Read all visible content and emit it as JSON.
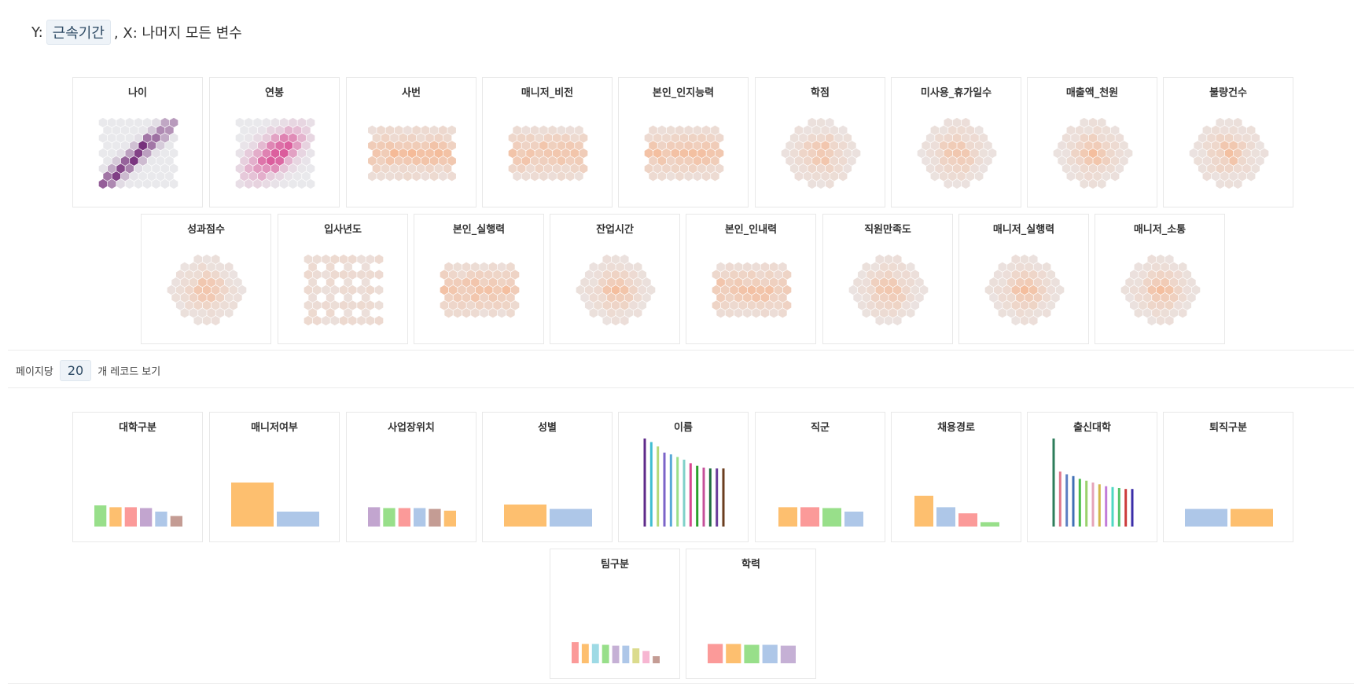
{
  "header": {
    "y_prefix": "Y:",
    "y_variable": "근속기간",
    "x_text": ", X: 나머지 모든 변수"
  },
  "pagination": {
    "prefix": "페이지당",
    "value": "20",
    "suffix": "개 레코드 보기"
  },
  "colors": {
    "heat_purple": "#6a1b6f",
    "heat_pink": "#d9458f",
    "heat_orange": "#f6b58e",
    "heat_bg": "#e9e9ec",
    "bar_palette": [
      "#99d98c",
      "#fdbf6f",
      "#fb9a99",
      "#c2a5cf",
      "#a6c8ec",
      "#c49c94",
      "#86d5e3",
      "#2ca02c",
      "#ff9896",
      "#98df8a",
      "#b5b5e0",
      "#8c564b"
    ]
  },
  "hexbin_charts": [
    {
      "id": "age",
      "title": "나이",
      "scheme": "purple"
    },
    {
      "id": "salary",
      "title": "연봉",
      "scheme": "pink"
    },
    {
      "id": "empno",
      "title": "사번",
      "scheme": "orange"
    },
    {
      "id": "mgr_vision",
      "title": "매니저_비전",
      "scheme": "orange"
    },
    {
      "id": "self_cog",
      "title": "본인_인지능력",
      "scheme": "orange"
    },
    {
      "id": "gpa",
      "title": "학점",
      "scheme": "orange"
    },
    {
      "id": "unused_leave",
      "title": "미사용_휴가일수",
      "scheme": "orange"
    },
    {
      "id": "sales",
      "title": "매출액_천원",
      "scheme": "orange"
    },
    {
      "id": "defects",
      "title": "불량건수",
      "scheme": "orange"
    },
    {
      "id": "perf",
      "title": "성과점수",
      "scheme": "orange"
    },
    {
      "id": "join_year",
      "title": "입사년도",
      "scheme": "orange"
    },
    {
      "id": "self_exec",
      "title": "본인_실행력",
      "scheme": "orange"
    },
    {
      "id": "overtime",
      "title": "잔업시간",
      "scheme": "orange"
    },
    {
      "id": "self_patience",
      "title": "본인_인내력",
      "scheme": "orange"
    },
    {
      "id": "satisfaction",
      "title": "직원만족도",
      "scheme": "orange"
    },
    {
      "id": "mgr_exec",
      "title": "매니저_실행력",
      "scheme": "orange"
    },
    {
      "id": "mgr_comm",
      "title": "매니저_소통",
      "scheme": "orange"
    }
  ],
  "chart_data": [
    {
      "type": "bar",
      "title": "대학구분",
      "values": [
        24,
        22,
        22,
        21,
        17,
        12
      ]
    },
    {
      "type": "bar",
      "title": "매니저여부",
      "values": [
        50,
        17
      ]
    },
    {
      "type": "bar",
      "title": "사업장위치",
      "values": [
        22,
        21,
        21,
        21,
        20,
        18
      ]
    },
    {
      "type": "bar",
      "title": "성별",
      "values": [
        25,
        20
      ]
    },
    {
      "type": "bar",
      "title": "이름",
      "values": [
        100,
        96,
        91,
        84,
        82,
        79,
        76,
        72,
        69,
        67,
        66,
        66,
        66
      ]
    },
    {
      "type": "bar",
      "title": "직군",
      "values": [
        22,
        22,
        21,
        17
      ]
    },
    {
      "type": "bar",
      "title": "채용경로",
      "values": [
        35,
        22,
        15,
        5
      ]
    },
    {
      "type": "bar",
      "title": "출신대학",
      "values": [
        96,
        60,
        57,
        55,
        52,
        50,
        48,
        46,
        44,
        43,
        42,
        41,
        41
      ]
    },
    {
      "type": "bar",
      "title": "퇴직구분",
      "values": [
        20,
        20
      ]
    },
    {
      "type": "bar",
      "title": "팀구분",
      "values": [
        24,
        22,
        22,
        21,
        20,
        20,
        17,
        14,
        8
      ]
    },
    {
      "type": "bar",
      "title": "학력",
      "values": [
        22,
        22,
        21,
        21,
        20
      ]
    }
  ]
}
